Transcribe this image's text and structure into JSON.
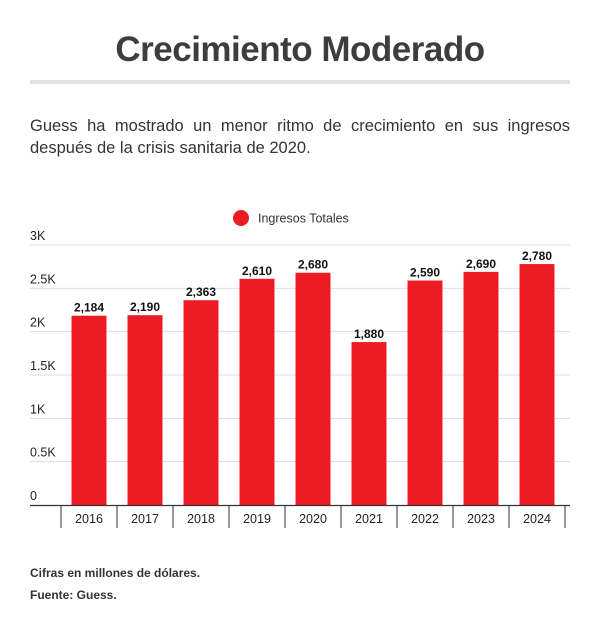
{
  "header": {
    "title": "Crecimiento Moderado",
    "subtitle": "Guess ha mostrado un menor ritmo de crecimiento en sus ingresos después de la crisis sanitaria de 2020."
  },
  "footer": {
    "note": "Cifras en millones de dólares.",
    "source": "Fuente: Guess."
  },
  "colors": {
    "bar": "#ed1c24",
    "grid": "#dddddd",
    "axis": "#333333"
  },
  "chart_data": {
    "type": "bar",
    "categories": [
      "2016",
      "2017",
      "2018",
      "2019",
      "2020",
      "2021",
      "2022",
      "2023",
      "2024"
    ],
    "series": [
      {
        "name": "Ingresos Totales",
        "values": [
          2184,
          2190,
          2363,
          2610,
          2680,
          1880,
          2590,
          2690,
          2780
        ],
        "labels": [
          "2,184",
          "2,190",
          "2,363",
          "2,610",
          "2,680",
          "1,880",
          "2,590",
          "2,690",
          "2,780"
        ]
      }
    ],
    "ylim": [
      0,
      3000
    ],
    "yticks": [
      0,
      500,
      1000,
      1500,
      2000,
      2500,
      3000
    ],
    "ytick_labels": [
      "0",
      "0.5K",
      "1K",
      "1.5K",
      "2K",
      "2.5K",
      "3K"
    ],
    "legend_position": "top-center",
    "grid": true
  }
}
